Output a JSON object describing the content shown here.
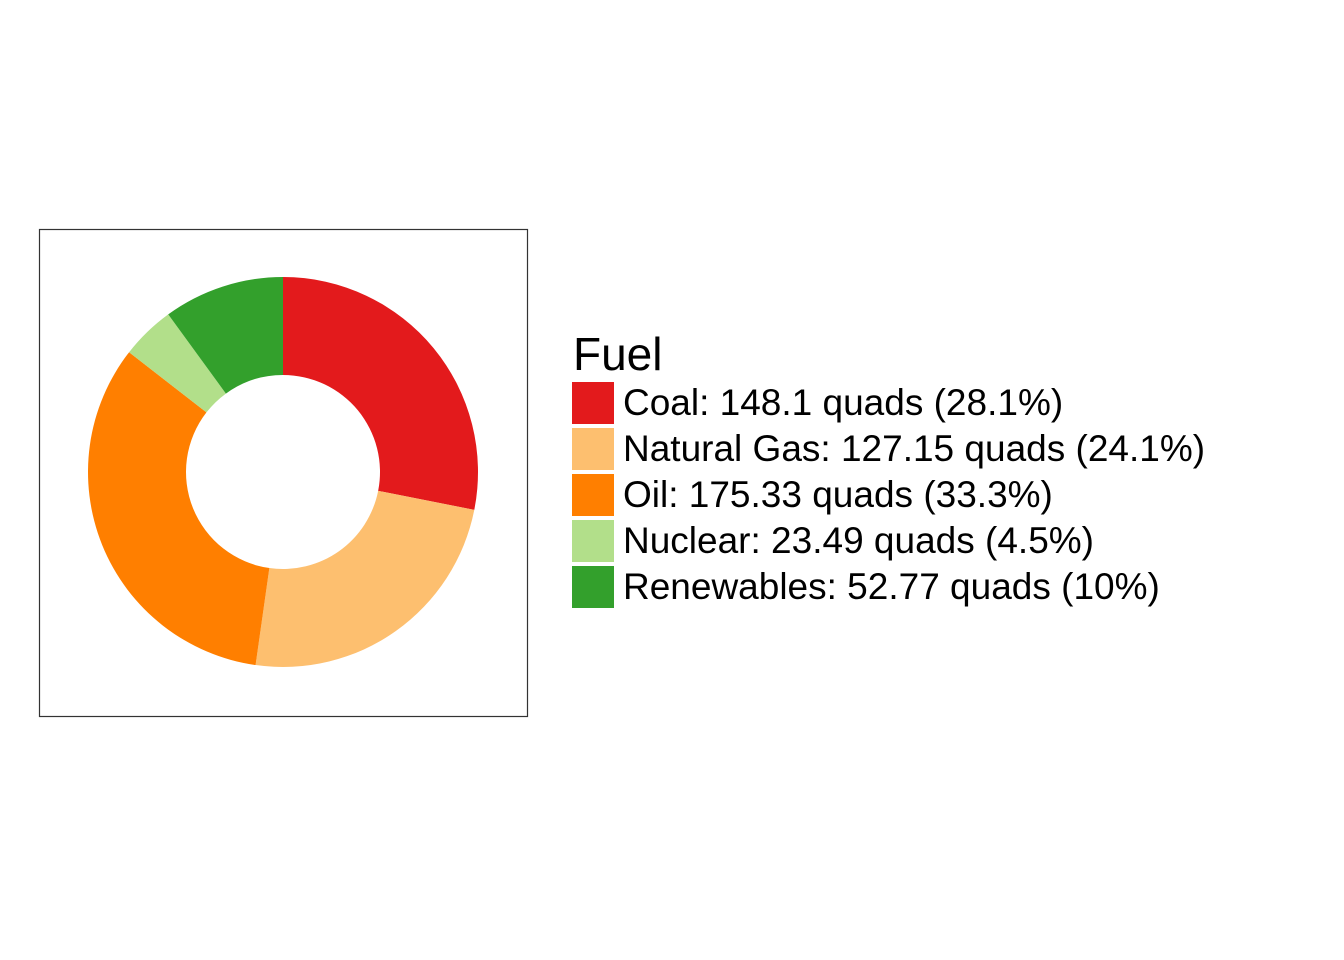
{
  "chart_data": {
    "type": "pie",
    "variant": "donut",
    "title": "",
    "legend": {
      "title": "Fuel",
      "position": "right"
    },
    "slices": [
      {
        "name": "Coal",
        "value": 148.1,
        "percent": 28.1,
        "label": "Coal: 148.1 quads (28.1%)",
        "color": "#E31A1C"
      },
      {
        "name": "Natural Gas",
        "value": 127.15,
        "percent": 24.1,
        "label": "Natural Gas: 127.15 quads (24.1%)",
        "color": "#FDBF6F"
      },
      {
        "name": "Oil",
        "value": 175.33,
        "percent": 33.3,
        "label": "Oil: 175.33 quads (33.3%)",
        "color": "#FF7F00"
      },
      {
        "name": "Nuclear",
        "value": 23.49,
        "percent": 4.5,
        "label": "Nuclear: 23.49 quads (4.5%)",
        "color": "#B2DF8A"
      },
      {
        "name": "Renewables",
        "value": 52.77,
        "percent": 10,
        "label": "Renewables: 52.77 quads (10%)",
        "color": "#33A02C"
      }
    ],
    "start_angle": "12 o'clock",
    "direction": "clockwise"
  }
}
